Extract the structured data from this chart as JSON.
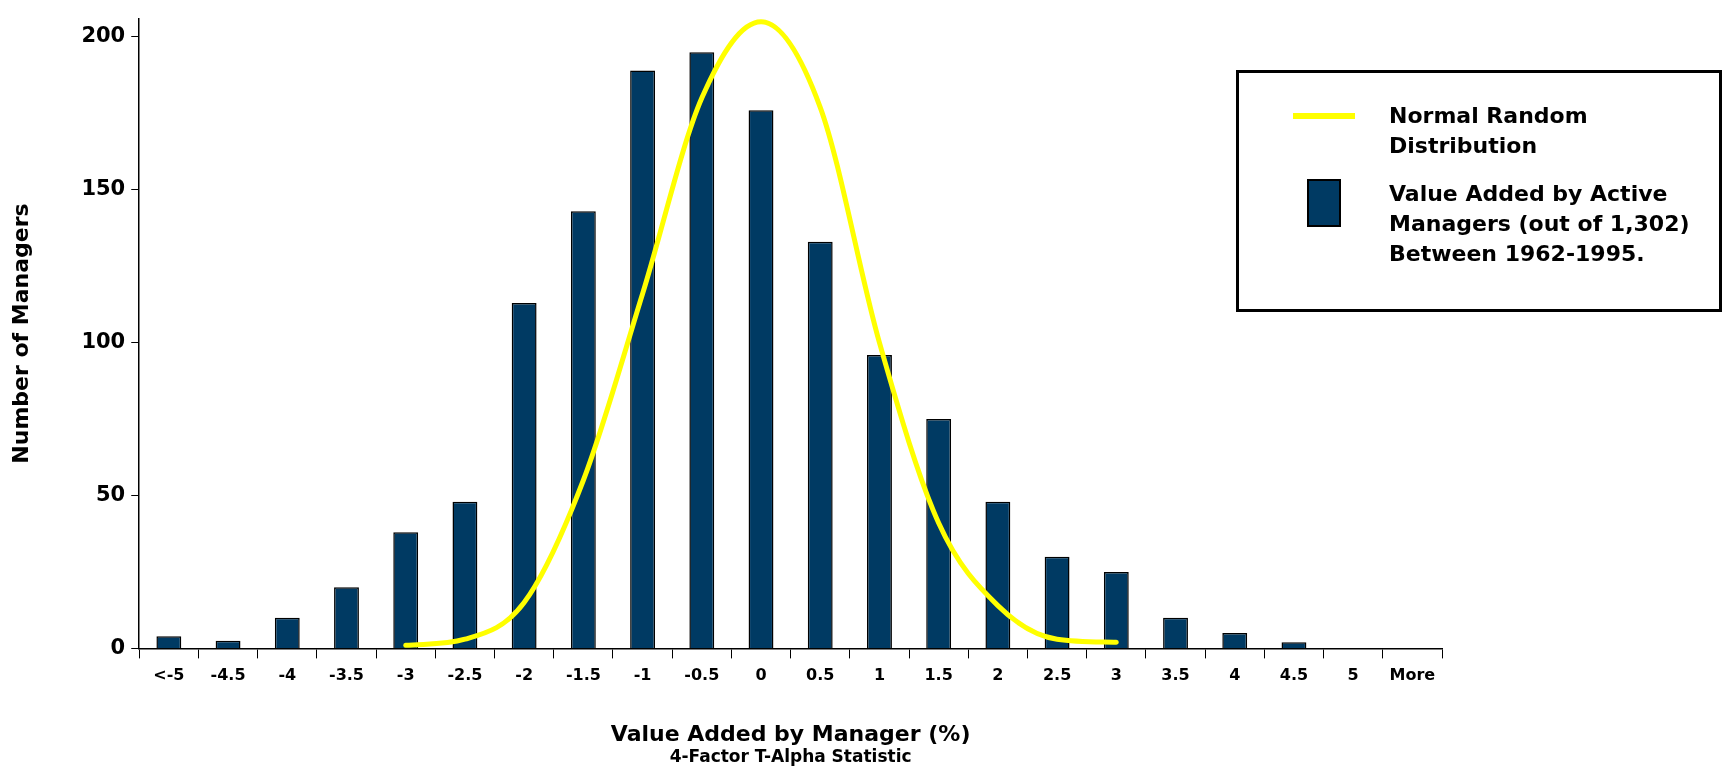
{
  "chart_data": {
    "type": "bar",
    "xlabel": "Value Added by Manager (%)",
    "ylabel": "Number of Managers",
    "annotations": [
      "4-Factor T-Alpha Statistic"
    ],
    "categories": [
      "<-5",
      "-4.5",
      "-4",
      "-3.5",
      "-3",
      "-2.5",
      "-2",
      "-1.5",
      "-1",
      "-0.5",
      "0",
      "0.5",
      "1",
      "1.5",
      "2",
      "2.5",
      "3",
      "3.5",
      "4",
      "4.5",
      "5",
      "More"
    ],
    "series": [
      {
        "name": "Normal Random Distribution",
        "type": "line",
        "color": "#ffff00",
        "marker": "none",
        "values": [
          null,
          null,
          null,
          null,
          1,
          3,
          15,
          55,
          116,
          180,
          205,
          177,
          100,
          41,
          14,
          3,
          2,
          null,
          null,
          null,
          null,
          null
        ]
      },
      {
        "name": "Value Added by Active Managers (out of 1,302) Between 1962-1995.",
        "color": "#003a63",
        "values": [
          4,
          2.5,
          10,
          20,
          38,
          48,
          113,
          143,
          189,
          195,
          176,
          133,
          96,
          75,
          48,
          30,
          25,
          10,
          5,
          2,
          0,
          0
        ]
      }
    ],
    "ylim": [
      0,
      206
    ],
    "yticks": [
      0,
      50,
      100,
      150,
      200
    ],
    "grid": false,
    "legend": "top right"
  }
}
